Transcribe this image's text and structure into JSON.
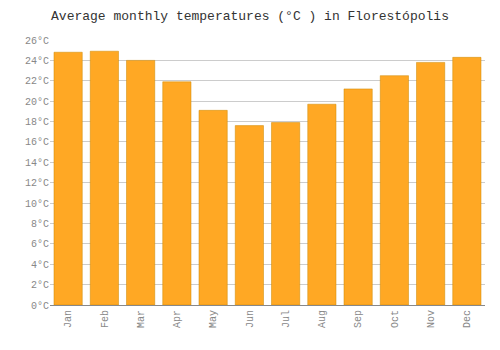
{
  "chart_data": {
    "type": "bar",
    "title": "Average monthly temperatures (°C ) in Florestópolis",
    "categories": [
      "Jan",
      "Feb",
      "Mar",
      "Apr",
      "May",
      "Jun",
      "Jul",
      "Aug",
      "Sep",
      "Oct",
      "Nov",
      "Dec"
    ],
    "values": [
      24.8,
      24.9,
      24.0,
      21.9,
      19.1,
      17.6,
      17.9,
      19.7,
      21.2,
      22.5,
      23.8,
      24.3
    ],
    "color": "#FFA824",
    "ylim": [
      0,
      26
    ],
    "yticks": [
      {
        "value": 0,
        "label": "0°C"
      },
      {
        "value": 2,
        "label": "2°C"
      },
      {
        "value": 4,
        "label": "4°C"
      },
      {
        "value": 6,
        "label": "6°C"
      },
      {
        "value": 8,
        "label": "8°C"
      },
      {
        "value": 10,
        "label": "10°C"
      },
      {
        "value": 12,
        "label": "12°C"
      },
      {
        "value": 14,
        "label": "14°C"
      },
      {
        "value": 16,
        "label": "16°C"
      },
      {
        "value": 18,
        "label": "18°C"
      },
      {
        "value": 20,
        "label": "20°C"
      },
      {
        "value": 22,
        "label": "22°C"
      },
      {
        "value": 24,
        "label": "24°C"
      },
      {
        "value": 26,
        "label": "26°C"
      }
    ],
    "grid": true
  }
}
